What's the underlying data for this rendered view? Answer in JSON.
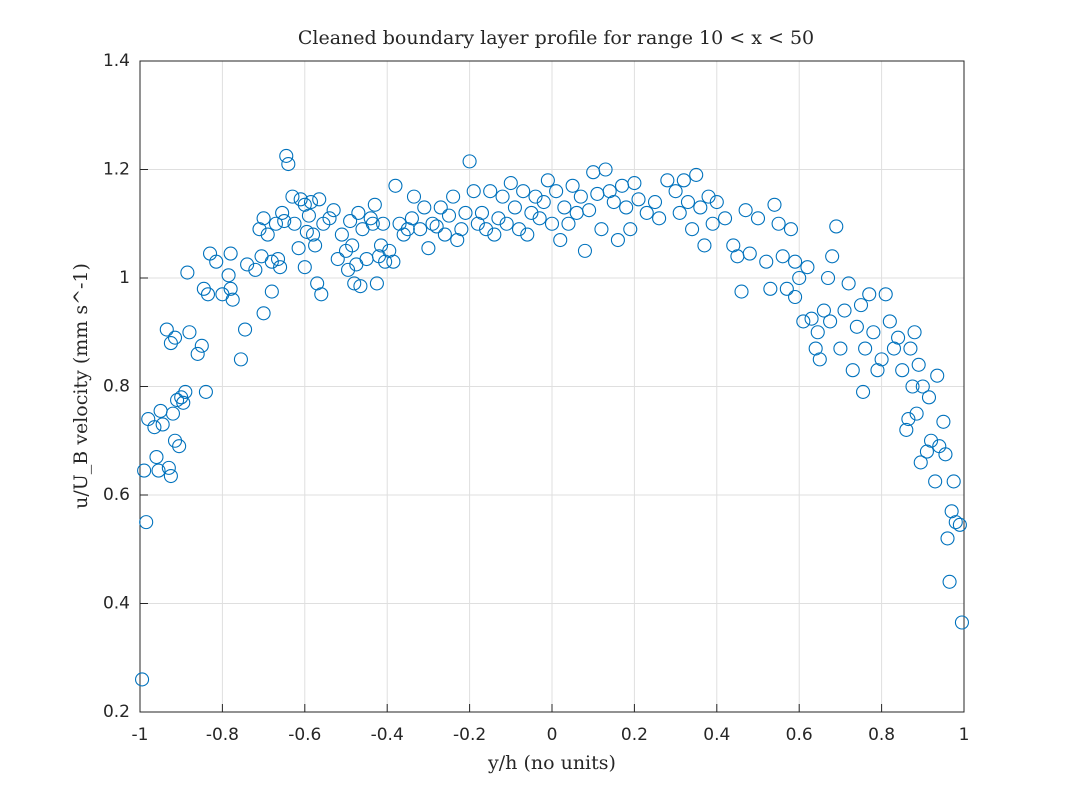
{
  "chart_data": {
    "type": "scatter",
    "title": "Cleaned boundary layer profile for range 10 < x < 50",
    "xlabel": "y/h (no units)",
    "ylabel": "u/U_B velocity (mm s^-1)",
    "color": "#0072BD",
    "grid": true,
    "xlim": [
      -1,
      1
    ],
    "xticks": [
      -1,
      -0.8,
      -0.6,
      -0.4,
      -0.2,
      0,
      0.2,
      0.4,
      0.6,
      0.8,
      1
    ],
    "ylim": [
      0.2,
      1.4
    ],
    "yticks": [
      0.2,
      0.4,
      0.6,
      0.8,
      1,
      1.2,
      1.4
    ],
    "x": [
      -0.995,
      -0.99,
      -0.985,
      -0.98,
      -0.965,
      -0.96,
      -0.955,
      -0.95,
      -0.945,
      -0.935,
      -0.93,
      -0.925,
      -0.925,
      -0.92,
      -0.915,
      -0.915,
      -0.91,
      -0.905,
      -0.9,
      -0.895,
      -0.89,
      -0.885,
      -0.88,
      -0.86,
      -0.85,
      -0.845,
      -0.84,
      -0.835,
      -0.83,
      -0.815,
      -0.8,
      -0.785,
      -0.78,
      -0.78,
      -0.775,
      -0.755,
      -0.745,
      -0.74,
      -0.72,
      -0.71,
      -0.705,
      -0.7,
      -0.7,
      -0.69,
      -0.68,
      -0.68,
      -0.67,
      -0.665,
      -0.66,
      -0.655,
      -0.65,
      -0.645,
      -0.64,
      -0.63,
      -0.625,
      -0.615,
      -0.61,
      -0.6,
      -0.6,
      -0.595,
      -0.59,
      -0.585,
      -0.58,
      -0.575,
      -0.57,
      -0.565,
      -0.56,
      -0.555,
      -0.54,
      -0.53,
      -0.52,
      -0.51,
      -0.5,
      -0.495,
      -0.49,
      -0.485,
      -0.48,
      -0.475,
      -0.47,
      -0.465,
      -0.46,
      -0.45,
      -0.44,
      -0.435,
      -0.43,
      -0.425,
      -0.42,
      -0.415,
      -0.41,
      -0.405,
      -0.395,
      -0.385,
      -0.38,
      -0.37,
      -0.36,
      -0.35,
      -0.34,
      -0.335,
      -0.32,
      -0.31,
      -0.3,
      -0.29,
      -0.28,
      -0.27,
      -0.26,
      -0.25,
      -0.24,
      -0.23,
      -0.22,
      -0.21,
      -0.2,
      -0.19,
      -0.18,
      -0.17,
      -0.16,
      -0.15,
      -0.14,
      -0.13,
      -0.12,
      -0.11,
      -0.1,
      -0.09,
      -0.08,
      -0.07,
      -0.06,
      -0.05,
      -0.04,
      -0.03,
      -0.02,
      -0.01,
      0,
      0.01,
      0.02,
      0.03,
      0.04,
      0.05,
      0.06,
      0.07,
      0.08,
      0.09,
      0.1,
      0.11,
      0.12,
      0.13,
      0.14,
      0.15,
      0.16,
      0.17,
      0.18,
      0.19,
      0.2,
      0.21,
      0.23,
      0.25,
      0.26,
      0.28,
      0.3,
      0.31,
      0.32,
      0.33,
      0.34,
      0.35,
      0.36,
      0.37,
      0.38,
      0.39,
      0.4,
      0.42,
      0.44,
      0.45,
      0.46,
      0.47,
      0.48,
      0.5,
      0.52,
      0.53,
      0.54,
      0.55,
      0.56,
      0.57,
      0.58,
      0.59,
      0.59,
      0.6,
      0.61,
      0.62,
      0.63,
      0.64,
      0.645,
      0.65,
      0.66,
      0.67,
      0.675,
      0.68,
      0.69,
      0.7,
      0.71,
      0.72,
      0.73,
      0.74,
      0.75,
      0.755,
      0.76,
      0.77,
      0.78,
      0.79,
      0.8,
      0.81,
      0.82,
      0.83,
      0.84,
      0.85,
      0.86,
      0.865,
      0.87,
      0.875,
      0.88,
      0.885,
      0.89,
      0.895,
      0.9,
      0.91,
      0.915,
      0.92,
      0.93,
      0.935,
      0.94,
      0.95,
      0.955,
      0.96,
      0.965,
      0.97,
      0.975,
      0.98,
      0.99,
      0.995
    ],
    "values": [
      0.26,
      0.645,
      0.55,
      0.74,
      0.725,
      0.67,
      0.645,
      0.755,
      0.73,
      0.905,
      0.65,
      0.635,
      0.88,
      0.75,
      0.89,
      0.7,
      0.775,
      0.69,
      0.78,
      0.77,
      0.79,
      1.01,
      0.9,
      0.86,
      0.875,
      0.98,
      0.79,
      0.97,
      1.045,
      1.03,
      0.97,
      1.005,
      1.045,
      0.98,
      0.96,
      0.85,
      0.905,
      1.025,
      1.015,
      1.09,
      1.04,
      0.935,
      1.11,
      1.08,
      1.03,
      0.975,
      1.1,
      1.035,
      1.02,
      1.12,
      1.105,
      1.225,
      1.21,
      1.15,
      1.1,
      1.055,
      1.145,
      1.135,
      1.02,
      1.085,
      1.115,
      1.14,
      1.08,
      1.06,
      0.99,
      1.145,
      0.97,
      1.1,
      1.11,
      1.125,
      1.035,
      1.08,
      1.05,
      1.015,
      1.105,
      1.06,
      0.99,
      1.025,
      1.12,
      0.985,
      1.09,
      1.035,
      1.11,
      1.1,
      1.135,
      0.99,
      1.04,
      1.06,
      1.1,
      1.03,
      1.05,
      1.03,
      1.17,
      1.1,
      1.08,
      1.09,
      1.11,
      1.15,
      1.09,
      1.13,
      1.055,
      1.1,
      1.095,
      1.13,
      1.08,
      1.115,
      1.15,
      1.07,
      1.09,
      1.12,
      1.215,
      1.16,
      1.1,
      1.12,
      1.09,
      1.16,
      1.08,
      1.11,
      1.15,
      1.1,
      1.175,
      1.13,
      1.09,
      1.16,
      1.08,
      1.12,
      1.15,
      1.11,
      1.14,
      1.18,
      1.1,
      1.16,
      1.07,
      1.13,
      1.1,
      1.17,
      1.12,
      1.15,
      1.05,
      1.125,
      1.195,
      1.155,
      1.09,
      1.2,
      1.16,
      1.14,
      1.07,
      1.17,
      1.13,
      1.09,
      1.175,
      1.145,
      1.12,
      1.14,
      1.11,
      1.18,
      1.16,
      1.12,
      1.18,
      1.14,
      1.09,
      1.19,
      1.13,
      1.06,
      1.15,
      1.1,
      1.14,
      1.11,
      1.06,
      1.04,
      0.975,
      1.125,
      1.045,
      1.11,
      1.03,
      0.98,
      1.135,
      1.1,
      1.04,
      0.98,
      1.09,
      1.03,
      0.965,
      1.0,
      0.92,
      1.02,
      0.925,
      0.87,
      0.9,
      0.85,
      0.94,
      1.0,
      0.92,
      1.04,
      1.095,
      0.87,
      0.94,
      0.99,
      0.83,
      0.91,
      0.95,
      0.79,
      0.87,
      0.97,
      0.9,
      0.83,
      0.85,
      0.97,
      0.92,
      0.87,
      0.89,
      0.83,
      0.72,
      0.74,
      0.87,
      0.8,
      0.9,
      0.75,
      0.84,
      0.66,
      0.8,
      0.68,
      0.78,
      0.7,
      0.625,
      0.82,
      0.69,
      0.735,
      0.675,
      0.52,
      0.44,
      0.57,
      0.625,
      0.55,
      0.545,
      0.365
    ]
  }
}
